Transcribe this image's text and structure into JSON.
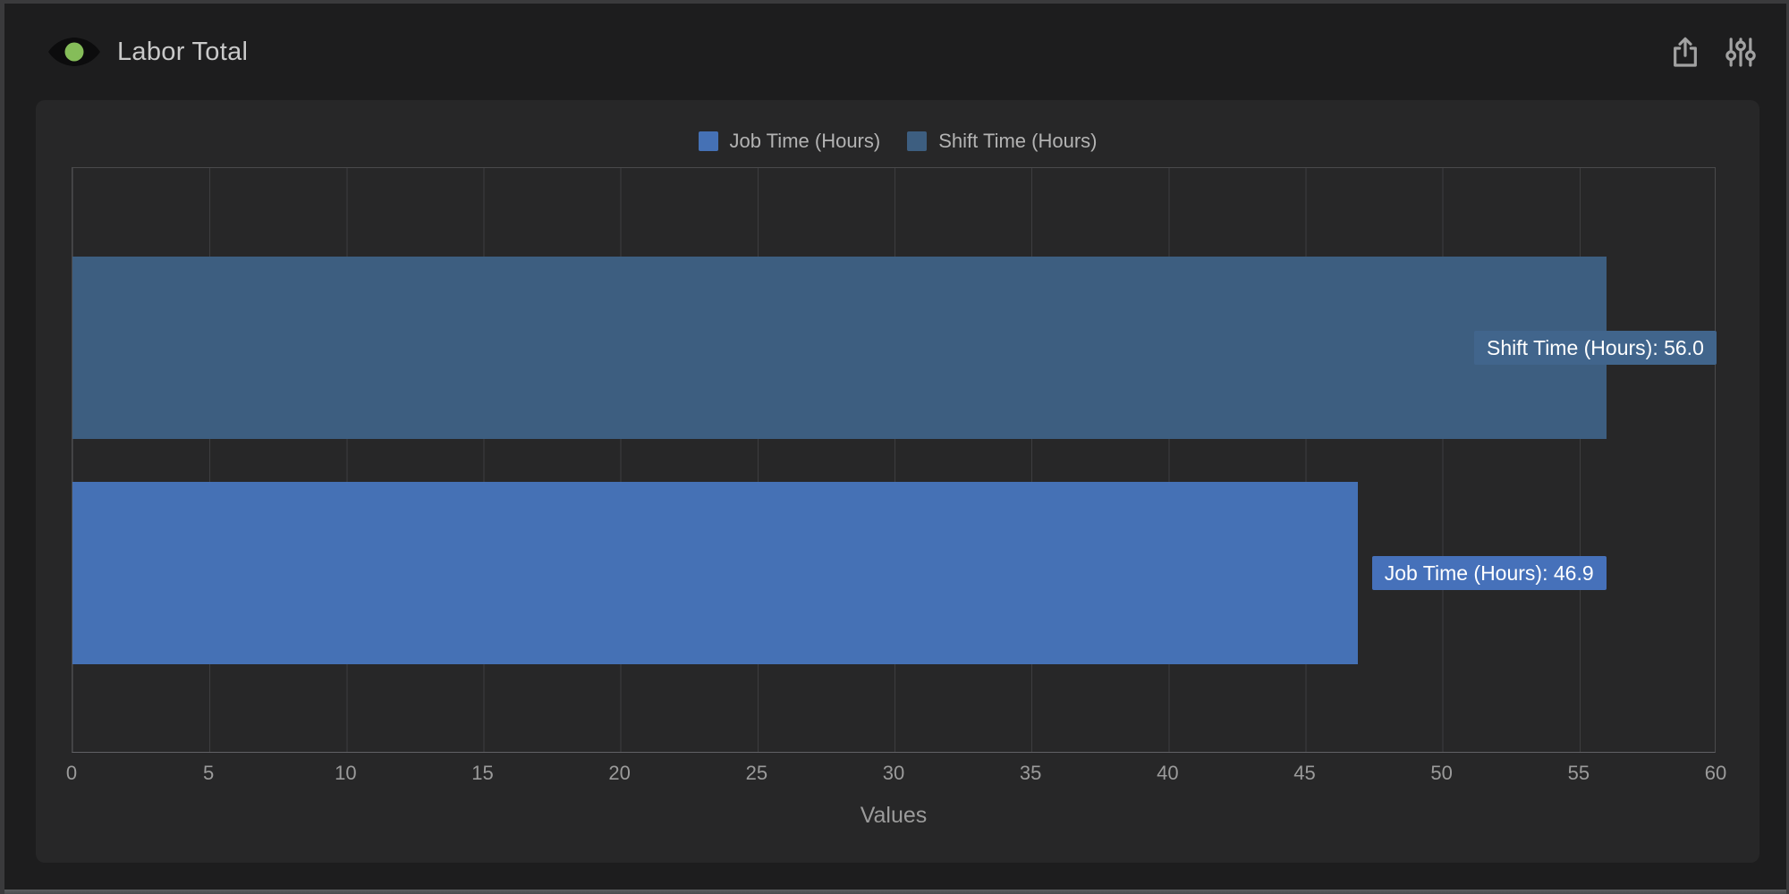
{
  "header": {
    "title": "Labor Total",
    "logo_icon": "eye-icon",
    "share_icon": "share-icon",
    "settings_icon": "sliders-icon"
  },
  "chart_data": {
    "type": "bar",
    "orientation": "horizontal",
    "title": "Labor Total",
    "categories": [
      "Shift Time (Hours)",
      "Job Time (Hours)"
    ],
    "series": [
      {
        "name": "Job Time (Hours)",
        "value": 46.9,
        "row": 1,
        "color": "#4571b5",
        "label_bg": "#4671ba",
        "label": "Job Time (Hours): 46.9"
      },
      {
        "name": "Shift Time (Hours)",
        "value": 56.0,
        "row": 0,
        "color": "#3d5e80",
        "label_bg": "#41658c",
        "label": "Shift Time (Hours): 56.0"
      }
    ],
    "legend": [
      "Job Time (Hours)",
      "Shift Time (Hours)"
    ],
    "legend_position": "top",
    "xlabel": "Values",
    "xlim": [
      0,
      60
    ],
    "xticks": [
      0,
      5,
      10,
      15,
      20,
      25,
      30,
      35,
      40,
      45,
      50,
      55,
      60
    ],
    "grid": "vertical"
  },
  "colors": {
    "outer_frame": "#3a3a3c",
    "window_bg": "#1d1d1e",
    "card_bg": "#272728",
    "gridline": "#3d3d3f",
    "plot_border": "#4a4a4c",
    "title_text": "#c9c9c9",
    "legend_text": "#b3b3b3",
    "tick_text": "#9b9b9b",
    "value_label_text": "#ffffff",
    "logo_pupil": "#85bd59",
    "header_icon": "#a2a2a2"
  }
}
